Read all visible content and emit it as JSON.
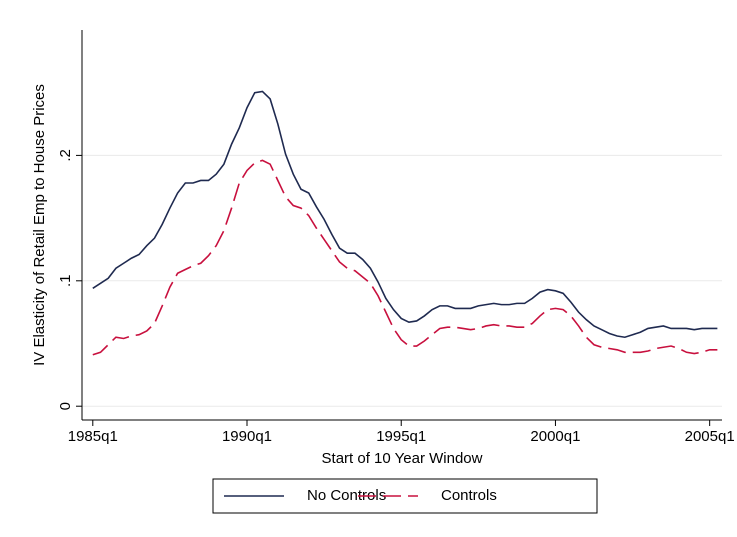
{
  "chart_data": {
    "type": "line",
    "xlabel": "Start of 10 Year Window",
    "ylabel": "IV Elasticity of Retail Emp to House Prices",
    "x": [
      1985,
      1985.25,
      1985.5,
      1985.75,
      1986,
      1986.25,
      1986.5,
      1986.75,
      1987,
      1987.25,
      1987.5,
      1987.75,
      1988,
      1988.25,
      1988.5,
      1988.75,
      1989,
      1989.25,
      1989.5,
      1989.75,
      1990,
      1990.25,
      1990.5,
      1990.75,
      1991,
      1991.25,
      1991.5,
      1991.75,
      1992,
      1992.25,
      1992.5,
      1992.75,
      1993,
      1993.25,
      1993.5,
      1993.75,
      1994,
      1994.25,
      1994.5,
      1994.75,
      1995,
      1995.25,
      1995.5,
      1995.75,
      1996,
      1996.25,
      1996.5,
      1996.75,
      1997,
      1997.25,
      1997.5,
      1997.75,
      1998,
      1998.25,
      1998.5,
      1998.75,
      1999,
      1999.25,
      1999.5,
      1999.75,
      2000,
      2000.25,
      2000.5,
      2000.75,
      2001,
      2001.25,
      2001.5,
      2001.75,
      2002,
      2002.25,
      2002.5,
      2002.75,
      2003,
      2003.25,
      2003.5,
      2003.75,
      2004,
      2004.25,
      2004.5,
      2004.75,
      2005,
      2005.25
    ],
    "series": [
      {
        "name": "No Controls",
        "color": "#1f2a50",
        "style": "solid",
        "values": [
          0.094,
          0.098,
          0.102,
          0.11,
          0.114,
          0.118,
          0.121,
          0.128,
          0.134,
          0.145,
          0.158,
          0.17,
          0.178,
          0.178,
          0.18,
          0.18,
          0.185,
          0.193,
          0.209,
          0.222,
          0.238,
          0.25,
          0.251,
          0.245,
          0.225,
          0.201,
          0.185,
          0.173,
          0.17,
          0.159,
          0.149,
          0.137,
          0.126,
          0.122,
          0.122,
          0.117,
          0.11,
          0.099,
          0.086,
          0.077,
          0.07,
          0.067,
          0.068,
          0.072,
          0.077,
          0.08,
          0.08,
          0.078,
          0.078,
          0.078,
          0.08,
          0.081,
          0.082,
          0.081,
          0.081,
          0.082,
          0.082,
          0.086,
          0.091,
          0.093,
          0.092,
          0.09,
          0.083,
          0.075,
          0.069,
          0.064,
          0.061,
          0.058,
          0.056,
          0.055,
          0.057,
          0.059,
          0.062,
          0.063,
          0.064,
          0.062,
          0.062,
          0.062,
          0.061,
          0.062,
          0.062,
          0.062
        ]
      },
      {
        "name": "Controls",
        "color": "#c8103e",
        "style": "dashed",
        "values": [
          0.041,
          0.043,
          0.049,
          0.055,
          0.054,
          0.056,
          0.057,
          0.06,
          0.066,
          0.08,
          0.095,
          0.106,
          0.109,
          0.112,
          0.114,
          0.12,
          0.128,
          0.14,
          0.158,
          0.178,
          0.188,
          0.194,
          0.196,
          0.193,
          0.18,
          0.167,
          0.16,
          0.158,
          0.152,
          0.142,
          0.133,
          0.124,
          0.115,
          0.11,
          0.108,
          0.103,
          0.098,
          0.088,
          0.075,
          0.062,
          0.053,
          0.048,
          0.048,
          0.052,
          0.057,
          0.062,
          0.063,
          0.063,
          0.062,
          0.061,
          0.062,
          0.064,
          0.065,
          0.064,
          0.064,
          0.063,
          0.063,
          0.066,
          0.072,
          0.077,
          0.078,
          0.077,
          0.072,
          0.064,
          0.055,
          0.049,
          0.047,
          0.046,
          0.045,
          0.043,
          0.043,
          0.043,
          0.044,
          0.046,
          0.047,
          0.048,
          0.046,
          0.043,
          0.042,
          0.043,
          0.045,
          0.045
        ]
      }
    ],
    "xlim": [
      1984.65,
      2005.4
    ],
    "xticks": [
      {
        "value": 1985,
        "label": "1985q1"
      },
      {
        "value": 1990,
        "label": "1990q1"
      },
      {
        "value": 1995,
        "label": "1995q1"
      },
      {
        "value": 2000,
        "label": "2000q1"
      },
      {
        "value": 2005,
        "label": "2005q1"
      }
    ],
    "ylim": [
      -0.011,
      0.3
    ],
    "yticks": [
      0,
      {
        "value": 0.1,
        "label": ".1"
      },
      {
        "value": 0.2,
        "label": ".2"
      }
    ],
    "grid": true,
    "legend": "bottom"
  }
}
